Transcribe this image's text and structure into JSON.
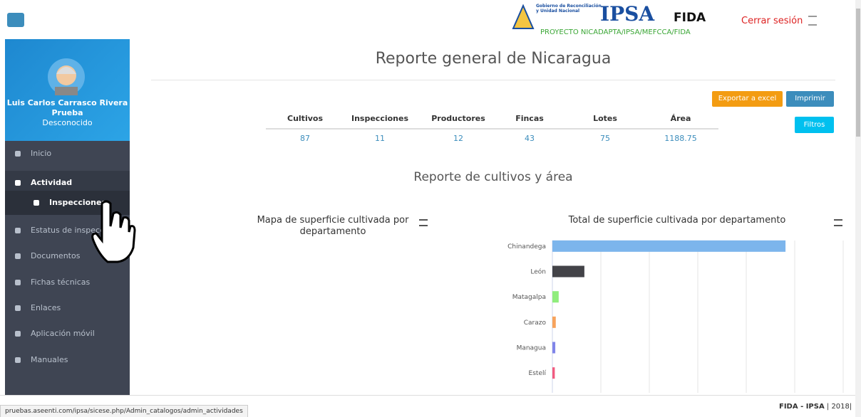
{
  "header": {
    "gov_line1": "Gobierno de Reconciliación",
    "gov_line2": "y Unidad Nacional",
    "logo_ipsa": "IPSA",
    "logo_fida": "FIDA",
    "project": "PROYECTO NICADAPTA/IPSA/MEFCCA/FIDA",
    "logout": "Cerrar sesión"
  },
  "sidebar": {
    "user_name": "Luis Carlos Carrasco Rivera",
    "user_role": "Prueba",
    "user_status": "Desconocido",
    "menu": [
      "Inicio",
      "Actividad",
      "Inspecciones",
      "Estatus de inspección",
      "Documentos",
      "Fichas técnicas",
      "Enlaces",
      "Aplicación móvil",
      "Manuales"
    ]
  },
  "main": {
    "title": "Reporte general de Nicaragua",
    "buttons": [
      "Exportar a excel",
      "Imprimir",
      "Filtros"
    ],
    "stats": {
      "headers": [
        "Cultivos",
        "Inspecciones",
        "Productores",
        "Fincas",
        "Lotes",
        "Área"
      ],
      "values": [
        "87",
        "11",
        "12",
        "43",
        "75",
        "1188.75"
      ]
    },
    "section_title": "Reporte de cultivos y área",
    "map_title": "Mapa de superficie cultivada por departamento"
  },
  "chart_data": {
    "type": "bar",
    "orientation": "horizontal",
    "title": "Total de superficie cultivada por departamento",
    "categories": [
      "Chinandega",
      "León",
      "Matagalpa",
      "Carazo",
      "Managua",
      "Estelí"
    ],
    "values": [
      4.81,
      0.66,
      0.13,
      0.07,
      0.06,
      0.05
    ],
    "colors": [
      "#7cb5ec",
      "#434348",
      "#90ed7d",
      "#f7a35c",
      "#8085e9",
      "#f15c80"
    ],
    "xlim": [
      0,
      6
    ],
    "xticks": [
      0,
      1,
      2,
      3,
      4,
      5,
      6
    ],
    "grid": true
  },
  "footer": {
    "url": "pruebas.aseenti.com/ipsa/sicese.php/Admin_catalogos/admin_actividades",
    "brand": "FIDA - IPSA",
    "year": "| 2018|"
  }
}
